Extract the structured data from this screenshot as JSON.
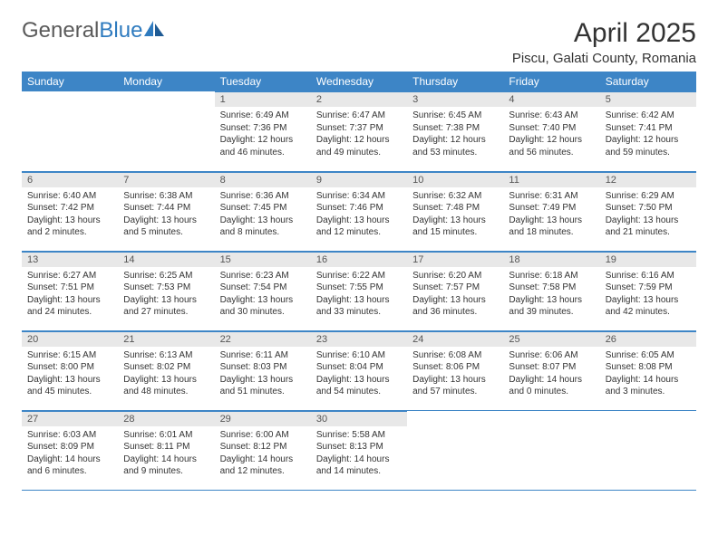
{
  "logo": {
    "text1": "General",
    "text2": "Blue"
  },
  "title": "April 2025",
  "location": "Piscu, Galati County, Romania",
  "colors": {
    "header_bg": "#3d85c6",
    "header_text": "#ffffff",
    "daynum_bg": "#e8e8e8",
    "border": "#3d85c6",
    "body_text": "#333333",
    "logo_gray": "#5a5a5a",
    "logo_blue": "#2f7bbf"
  },
  "weekdays": [
    "Sunday",
    "Monday",
    "Tuesday",
    "Wednesday",
    "Thursday",
    "Friday",
    "Saturday"
  ],
  "grid": [
    [
      {
        "empty": true
      },
      {
        "empty": true
      },
      {
        "n": "1",
        "sr": "Sunrise: 6:49 AM",
        "ss": "Sunset: 7:36 PM",
        "dl": "Daylight: 12 hours and 46 minutes."
      },
      {
        "n": "2",
        "sr": "Sunrise: 6:47 AM",
        "ss": "Sunset: 7:37 PM",
        "dl": "Daylight: 12 hours and 49 minutes."
      },
      {
        "n": "3",
        "sr": "Sunrise: 6:45 AM",
        "ss": "Sunset: 7:38 PM",
        "dl": "Daylight: 12 hours and 53 minutes."
      },
      {
        "n": "4",
        "sr": "Sunrise: 6:43 AM",
        "ss": "Sunset: 7:40 PM",
        "dl": "Daylight: 12 hours and 56 minutes."
      },
      {
        "n": "5",
        "sr": "Sunrise: 6:42 AM",
        "ss": "Sunset: 7:41 PM",
        "dl": "Daylight: 12 hours and 59 minutes."
      }
    ],
    [
      {
        "n": "6",
        "sr": "Sunrise: 6:40 AM",
        "ss": "Sunset: 7:42 PM",
        "dl": "Daylight: 13 hours and 2 minutes."
      },
      {
        "n": "7",
        "sr": "Sunrise: 6:38 AM",
        "ss": "Sunset: 7:44 PM",
        "dl": "Daylight: 13 hours and 5 minutes."
      },
      {
        "n": "8",
        "sr": "Sunrise: 6:36 AM",
        "ss": "Sunset: 7:45 PM",
        "dl": "Daylight: 13 hours and 8 minutes."
      },
      {
        "n": "9",
        "sr": "Sunrise: 6:34 AM",
        "ss": "Sunset: 7:46 PM",
        "dl": "Daylight: 13 hours and 12 minutes."
      },
      {
        "n": "10",
        "sr": "Sunrise: 6:32 AM",
        "ss": "Sunset: 7:48 PM",
        "dl": "Daylight: 13 hours and 15 minutes."
      },
      {
        "n": "11",
        "sr": "Sunrise: 6:31 AM",
        "ss": "Sunset: 7:49 PM",
        "dl": "Daylight: 13 hours and 18 minutes."
      },
      {
        "n": "12",
        "sr": "Sunrise: 6:29 AM",
        "ss": "Sunset: 7:50 PM",
        "dl": "Daylight: 13 hours and 21 minutes."
      }
    ],
    [
      {
        "n": "13",
        "sr": "Sunrise: 6:27 AM",
        "ss": "Sunset: 7:51 PM",
        "dl": "Daylight: 13 hours and 24 minutes."
      },
      {
        "n": "14",
        "sr": "Sunrise: 6:25 AM",
        "ss": "Sunset: 7:53 PM",
        "dl": "Daylight: 13 hours and 27 minutes."
      },
      {
        "n": "15",
        "sr": "Sunrise: 6:23 AM",
        "ss": "Sunset: 7:54 PM",
        "dl": "Daylight: 13 hours and 30 minutes."
      },
      {
        "n": "16",
        "sr": "Sunrise: 6:22 AM",
        "ss": "Sunset: 7:55 PM",
        "dl": "Daylight: 13 hours and 33 minutes."
      },
      {
        "n": "17",
        "sr": "Sunrise: 6:20 AM",
        "ss": "Sunset: 7:57 PM",
        "dl": "Daylight: 13 hours and 36 minutes."
      },
      {
        "n": "18",
        "sr": "Sunrise: 6:18 AM",
        "ss": "Sunset: 7:58 PM",
        "dl": "Daylight: 13 hours and 39 minutes."
      },
      {
        "n": "19",
        "sr": "Sunrise: 6:16 AM",
        "ss": "Sunset: 7:59 PM",
        "dl": "Daylight: 13 hours and 42 minutes."
      }
    ],
    [
      {
        "n": "20",
        "sr": "Sunrise: 6:15 AM",
        "ss": "Sunset: 8:00 PM",
        "dl": "Daylight: 13 hours and 45 minutes."
      },
      {
        "n": "21",
        "sr": "Sunrise: 6:13 AM",
        "ss": "Sunset: 8:02 PM",
        "dl": "Daylight: 13 hours and 48 minutes."
      },
      {
        "n": "22",
        "sr": "Sunrise: 6:11 AM",
        "ss": "Sunset: 8:03 PM",
        "dl": "Daylight: 13 hours and 51 minutes."
      },
      {
        "n": "23",
        "sr": "Sunrise: 6:10 AM",
        "ss": "Sunset: 8:04 PM",
        "dl": "Daylight: 13 hours and 54 minutes."
      },
      {
        "n": "24",
        "sr": "Sunrise: 6:08 AM",
        "ss": "Sunset: 8:06 PM",
        "dl": "Daylight: 13 hours and 57 minutes."
      },
      {
        "n": "25",
        "sr": "Sunrise: 6:06 AM",
        "ss": "Sunset: 8:07 PM",
        "dl": "Daylight: 14 hours and 0 minutes."
      },
      {
        "n": "26",
        "sr": "Sunrise: 6:05 AM",
        "ss": "Sunset: 8:08 PM",
        "dl": "Daylight: 14 hours and 3 minutes."
      }
    ],
    [
      {
        "n": "27",
        "sr": "Sunrise: 6:03 AM",
        "ss": "Sunset: 8:09 PM",
        "dl": "Daylight: 14 hours and 6 minutes."
      },
      {
        "n": "28",
        "sr": "Sunrise: 6:01 AM",
        "ss": "Sunset: 8:11 PM",
        "dl": "Daylight: 14 hours and 9 minutes."
      },
      {
        "n": "29",
        "sr": "Sunrise: 6:00 AM",
        "ss": "Sunset: 8:12 PM",
        "dl": "Daylight: 14 hours and 12 minutes."
      },
      {
        "n": "30",
        "sr": "Sunrise: 5:58 AM",
        "ss": "Sunset: 8:13 PM",
        "dl": "Daylight: 14 hours and 14 minutes."
      },
      {
        "empty": true
      },
      {
        "empty": true
      },
      {
        "empty": true
      }
    ]
  ]
}
